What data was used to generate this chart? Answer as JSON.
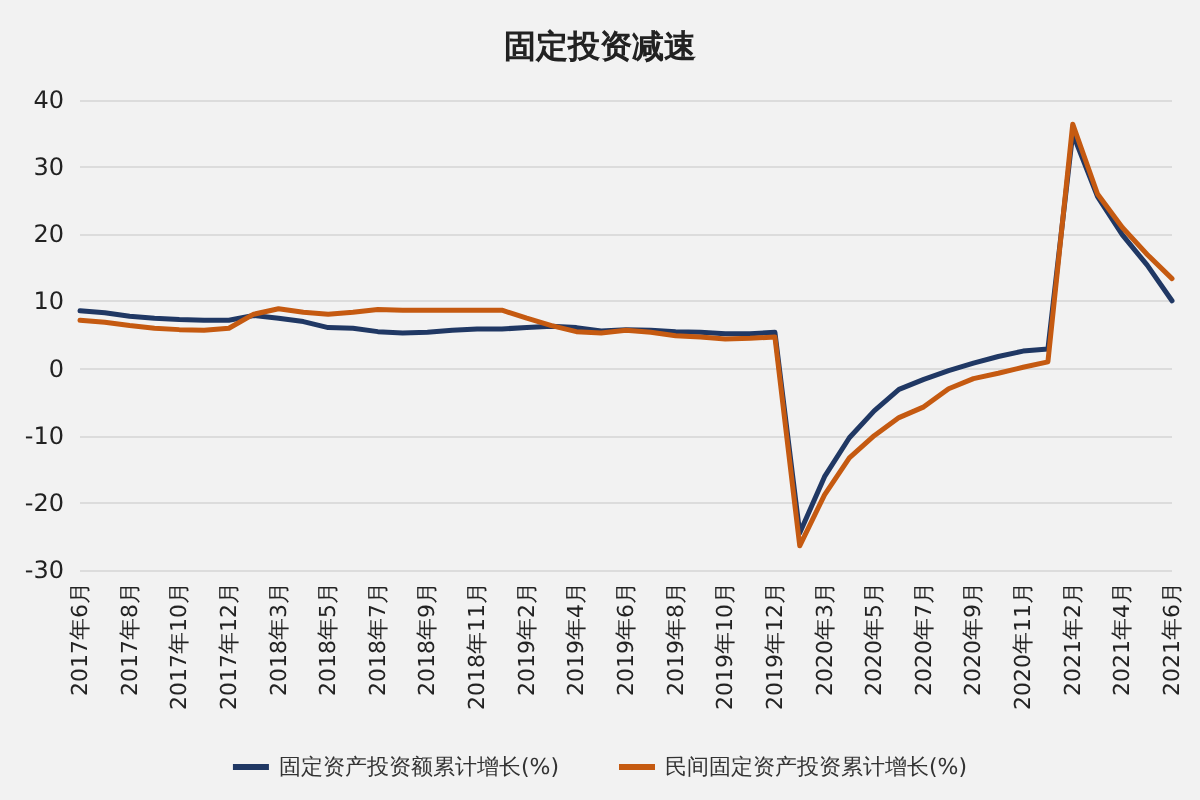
{
  "chart_data": {
    "type": "line",
    "title": "固定投资减速",
    "categories": [
      "2017年6月",
      null,
      "2017年8月",
      null,
      "2017年10月",
      null,
      "2017年12月",
      null,
      "2018年3月",
      null,
      "2018年5月",
      null,
      "2018年7月",
      null,
      "2018年9月",
      null,
      "2018年11月",
      null,
      "2019年2月",
      null,
      "2019年4月",
      null,
      "2019年6月",
      null,
      "2019年8月",
      null,
      "2019年10月",
      null,
      "2019年12月",
      null,
      "2020年3月",
      null,
      "2020年5月",
      null,
      "2020年7月",
      null,
      "2020年9月",
      null,
      "2020年11月",
      null,
      "2021年2月",
      null,
      "2021年4月",
      null,
      "2021年6月"
    ],
    "series": [
      {
        "name": "固定资产投资额累计增长(%)",
        "color": "#203864",
        "values": [
          8.6,
          8.3,
          7.8,
          7.5,
          7.3,
          7.2,
          7.2,
          7.9,
          7.5,
          7.0,
          6.1,
          6.0,
          5.5,
          5.3,
          5.4,
          5.7,
          5.9,
          5.9,
          6.1,
          6.3,
          6.1,
          5.6,
          5.8,
          5.7,
          5.5,
          5.4,
          5.2,
          5.2,
          5.4,
          -24.5,
          -16.1,
          -10.3,
          -6.3,
          -3.1,
          -1.6,
          -0.3,
          0.8,
          1.8,
          2.6,
          2.9,
          35.0,
          25.6,
          19.9,
          15.4,
          10.1
        ]
      },
      {
        "name": "民间固定资产投资累计增长(%)",
        "color": "#c55a11",
        "values": [
          7.2,
          6.9,
          6.4,
          6.0,
          5.8,
          5.7,
          6.0,
          8.1,
          8.9,
          8.4,
          8.1,
          8.4,
          8.8,
          8.7,
          8.7,
          8.7,
          8.7,
          8.7,
          7.5,
          6.4,
          5.5,
          5.3,
          5.7,
          5.4,
          4.9,
          4.7,
          4.4,
          4.5,
          4.7,
          -26.4,
          -18.8,
          -13.3,
          -10.0,
          -7.3,
          -5.7,
          -3.0,
          -1.5,
          -0.7,
          0.2,
          1.0,
          36.4,
          26.0,
          21.0,
          17.0,
          13.4
        ]
      }
    ],
    "ylim": [
      -30,
      40
    ],
    "yticks": [
      -30,
      -20,
      -10,
      0,
      10,
      20,
      30,
      40
    ],
    "grid": "y",
    "legend": "bottom",
    "marker": "none",
    "line_style": "solid"
  }
}
